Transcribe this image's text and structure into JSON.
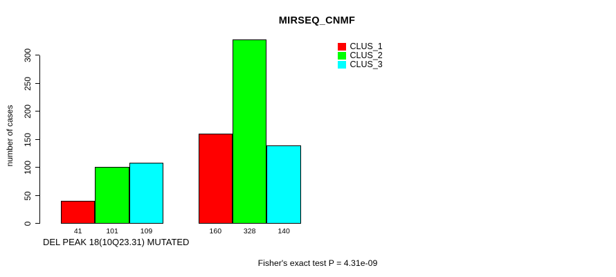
{
  "chart_data": {
    "type": "bar",
    "title": "MIRSEQ_CNMF",
    "xlabel": "DEL PEAK 18(10Q23.31) MUTATED",
    "ylabel": "number of cases",
    "series": [
      {
        "name": "CLUS_1",
        "color": "#ff0000",
        "values": [
          41,
          160
        ]
      },
      {
        "name": "CLUS_2",
        "color": "#00ff00",
        "values": [
          101,
          328
        ]
      },
      {
        "name": "CLUS_3",
        "color": "#00ffff",
        "values": [
          109,
          140
        ]
      }
    ],
    "groups_count": 2,
    "ylim": [
      0,
      300
    ],
    "yticks": [
      0,
      50,
      100,
      150,
      200,
      250,
      300
    ],
    "grid": false,
    "legend_position": "top-right",
    "bar_value_labels": true,
    "annotation": "Fisher's exact test P = 4.31e-09"
  }
}
